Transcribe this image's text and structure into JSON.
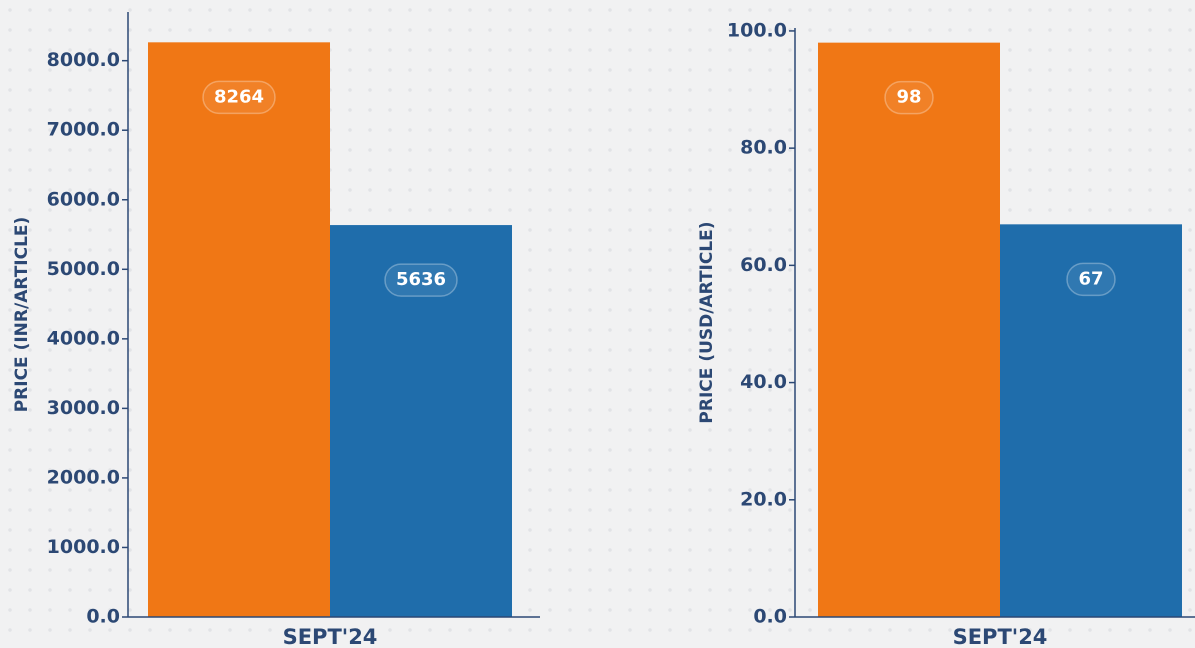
{
  "chart_data": [
    {
      "type": "bar",
      "y_label": "PRICE (INR/ARTICLE)",
      "categories": [
        "SEPT'24"
      ],
      "series": [
        {
          "color": "#f07715",
          "values": [
            8264
          ]
        },
        {
          "color": "#1f6dab",
          "values": [
            5636
          ]
        }
      ],
      "ylim": [
        0,
        8700
      ],
      "yticks": [
        {
          "value": 0,
          "label": "0.0"
        },
        {
          "value": 1000,
          "label": "1000.0"
        },
        {
          "value": 2000,
          "label": "2000.0"
        },
        {
          "value": 3000,
          "label": "3000.0"
        },
        {
          "value": 4000,
          "label": "4000.0"
        },
        {
          "value": 5000,
          "label": "5000.0"
        },
        {
          "value": 6000,
          "label": "6000.0"
        },
        {
          "value": 7000,
          "label": "7000.0"
        },
        {
          "value": 8000,
          "label": "8000.0"
        }
      ]
    },
    {
      "type": "bar",
      "y_label": "PRICE (USD/ARTICLE)",
      "categories": [
        "SEPT'24"
      ],
      "series": [
        {
          "color": "#f07715",
          "values": [
            98
          ]
        },
        {
          "color": "#1f6dab",
          "values": [
            67
          ]
        }
      ],
      "ylim": [
        0,
        100.5
      ],
      "yticks": [
        {
          "value": 0,
          "label": "0.0"
        },
        {
          "value": 20,
          "label": "20.0"
        },
        {
          "value": 40,
          "label": "40.0"
        },
        {
          "value": 60,
          "label": "60.0"
        },
        {
          "value": 80,
          "label": "80.0"
        },
        {
          "value": 100,
          "label": "100.0"
        }
      ]
    }
  ]
}
